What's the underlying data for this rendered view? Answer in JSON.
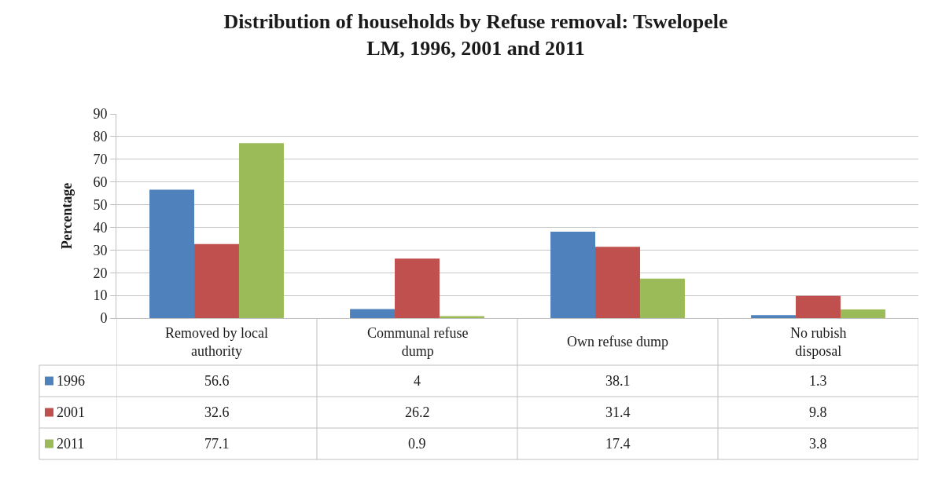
{
  "chart_data": {
    "type": "bar",
    "title": "Distribution of households by Refuse removal: Tswelopele LM, 1996, 2001 and 2011",
    "ylabel": "Percentage",
    "categories": [
      "Removed by local authority",
      "Communal refuse dump",
      "Own refuse dump",
      "No rubish disposal"
    ],
    "series": [
      {
        "name": "1996",
        "color": "#4f81bd",
        "values": [
          56.6,
          4,
          38.1,
          1.3
        ]
      },
      {
        "name": "2001",
        "color": "#c0504d",
        "values": [
          32.6,
          26.2,
          31.4,
          9.8
        ]
      },
      {
        "name": "2011",
        "color": "#9bbb59",
        "values": [
          77.1,
          0.9,
          17.4,
          3.8
        ]
      }
    ],
    "ylim": [
      0,
      90
    ],
    "yticks": [
      0,
      10,
      20,
      30,
      40,
      50,
      60,
      70,
      80,
      90
    ],
    "grid": "y",
    "legend": "bottom left",
    "data_labels": true
  }
}
